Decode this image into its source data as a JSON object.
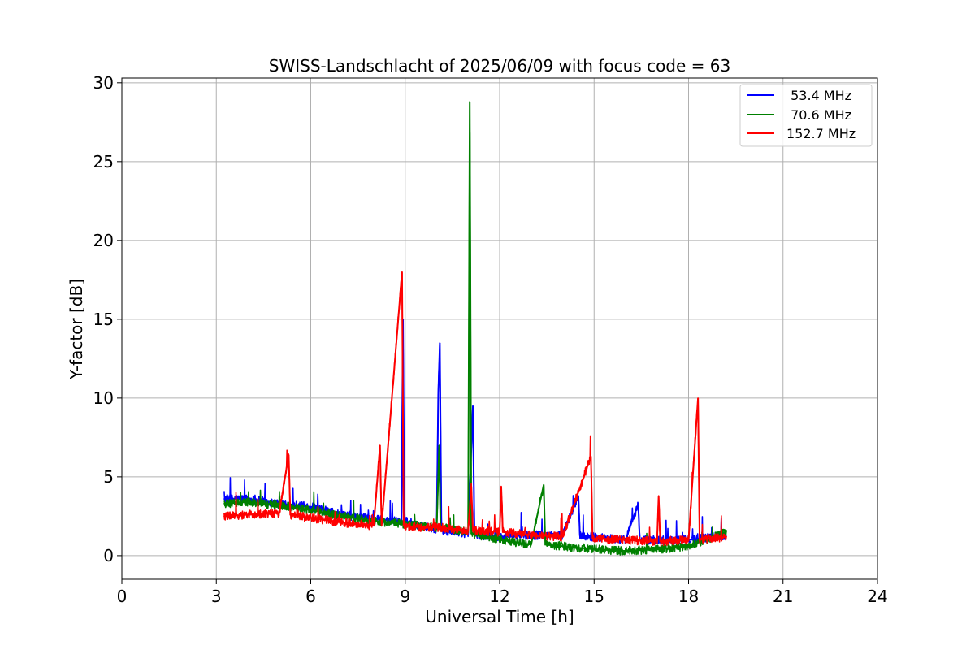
{
  "chart_data": {
    "type": "line",
    "title": "SWISS-Landschlacht of 2025/06/09 with focus code = 63",
    "xlabel": "Universal Time [h]",
    "ylabel": "Y-factor [dB]",
    "xlim": [
      0,
      24
    ],
    "ylim": [
      -1.5,
      30.3
    ],
    "xticks": [
      0,
      3,
      6,
      9,
      12,
      15,
      18,
      21,
      24
    ],
    "yticks": [
      0,
      5,
      10,
      15,
      20,
      25,
      30
    ],
    "grid": true,
    "legend_position": "top-right",
    "series": [
      {
        "name": " 53.4 MHz",
        "color": "#0000ff",
        "points": [
          [
            3.25,
            3.6
          ],
          [
            4,
            3.6
          ],
          [
            5,
            3.3
          ],
          [
            6,
            3.1
          ],
          [
            7,
            2.6
          ],
          [
            8,
            2.3
          ],
          [
            8.88,
            2.2
          ],
          [
            8.93,
            15.0
          ],
          [
            8.97,
            2.2
          ],
          [
            9.5,
            1.9
          ],
          [
            10,
            1.7
          ],
          [
            10.05,
            10.2
          ],
          [
            10.1,
            13.5
          ],
          [
            10.15,
            1.6
          ],
          [
            11,
            1.4
          ],
          [
            11.15,
            9.5
          ],
          [
            11.2,
            1.3
          ],
          [
            12,
            1.2
          ],
          [
            13,
            1.3
          ],
          [
            14,
            1.3
          ],
          [
            14.5,
            3.8
          ],
          [
            14.55,
            1.3
          ],
          [
            15,
            1.2
          ],
          [
            16,
            1.0
          ],
          [
            16.4,
            3.3
          ],
          [
            16.45,
            1.0
          ],
          [
            17,
            1.0
          ],
          [
            18,
            1.0
          ],
          [
            19.2,
            1.3
          ]
        ]
      },
      {
        "name": " 70.6 MHz",
        "color": "#008000",
        "points": [
          [
            3.25,
            3.3
          ],
          [
            4,
            3.4
          ],
          [
            5,
            3.2
          ],
          [
            6,
            2.9
          ],
          [
            7,
            2.5
          ],
          [
            8,
            2.2
          ],
          [
            9,
            2.0
          ],
          [
            10,
            1.8
          ],
          [
            10.08,
            7.0
          ],
          [
            10.12,
            1.8
          ],
          [
            11,
            1.5
          ],
          [
            11.05,
            28.8
          ],
          [
            11.1,
            1.4
          ],
          [
            12,
            1.0
          ],
          [
            13,
            0.7
          ],
          [
            13.4,
            4.5
          ],
          [
            13.45,
            0.7
          ],
          [
            14,
            0.6
          ],
          [
            15,
            0.4
          ],
          [
            16,
            0.3
          ],
          [
            17,
            0.4
          ],
          [
            18,
            0.6
          ],
          [
            19.2,
            1.5
          ]
        ]
      },
      {
        "name": "152.7 MHz",
        "color": "#ff0000",
        "points": [
          [
            3.25,
            2.5
          ],
          [
            4,
            2.6
          ],
          [
            5,
            2.7
          ],
          [
            5.3,
            6.4
          ],
          [
            5.35,
            2.6
          ],
          [
            6,
            2.4
          ],
          [
            7,
            2.1
          ],
          [
            8,
            1.9
          ],
          [
            8.2,
            7.0
          ],
          [
            8.25,
            1.9
          ],
          [
            8.9,
            18.0
          ],
          [
            8.95,
            1.9
          ],
          [
            9.5,
            1.8
          ],
          [
            10,
            1.8
          ],
          [
            11,
            1.6
          ],
          [
            11.1,
            4.4
          ],
          [
            11.15,
            1.6
          ],
          [
            12,
            1.5
          ],
          [
            12.05,
            4.4
          ],
          [
            12.1,
            1.5
          ],
          [
            13,
            1.3
          ],
          [
            14,
            1.2
          ],
          [
            14.9,
            6.3
          ],
          [
            14.95,
            1.1
          ],
          [
            16,
            1.0
          ],
          [
            17,
            0.9
          ],
          [
            17.05,
            3.8
          ],
          [
            17.1,
            0.9
          ],
          [
            18,
            1.0
          ],
          [
            18.3,
            10.0
          ],
          [
            18.35,
            1.0
          ],
          [
            19.2,
            1.2
          ]
        ]
      }
    ]
  }
}
